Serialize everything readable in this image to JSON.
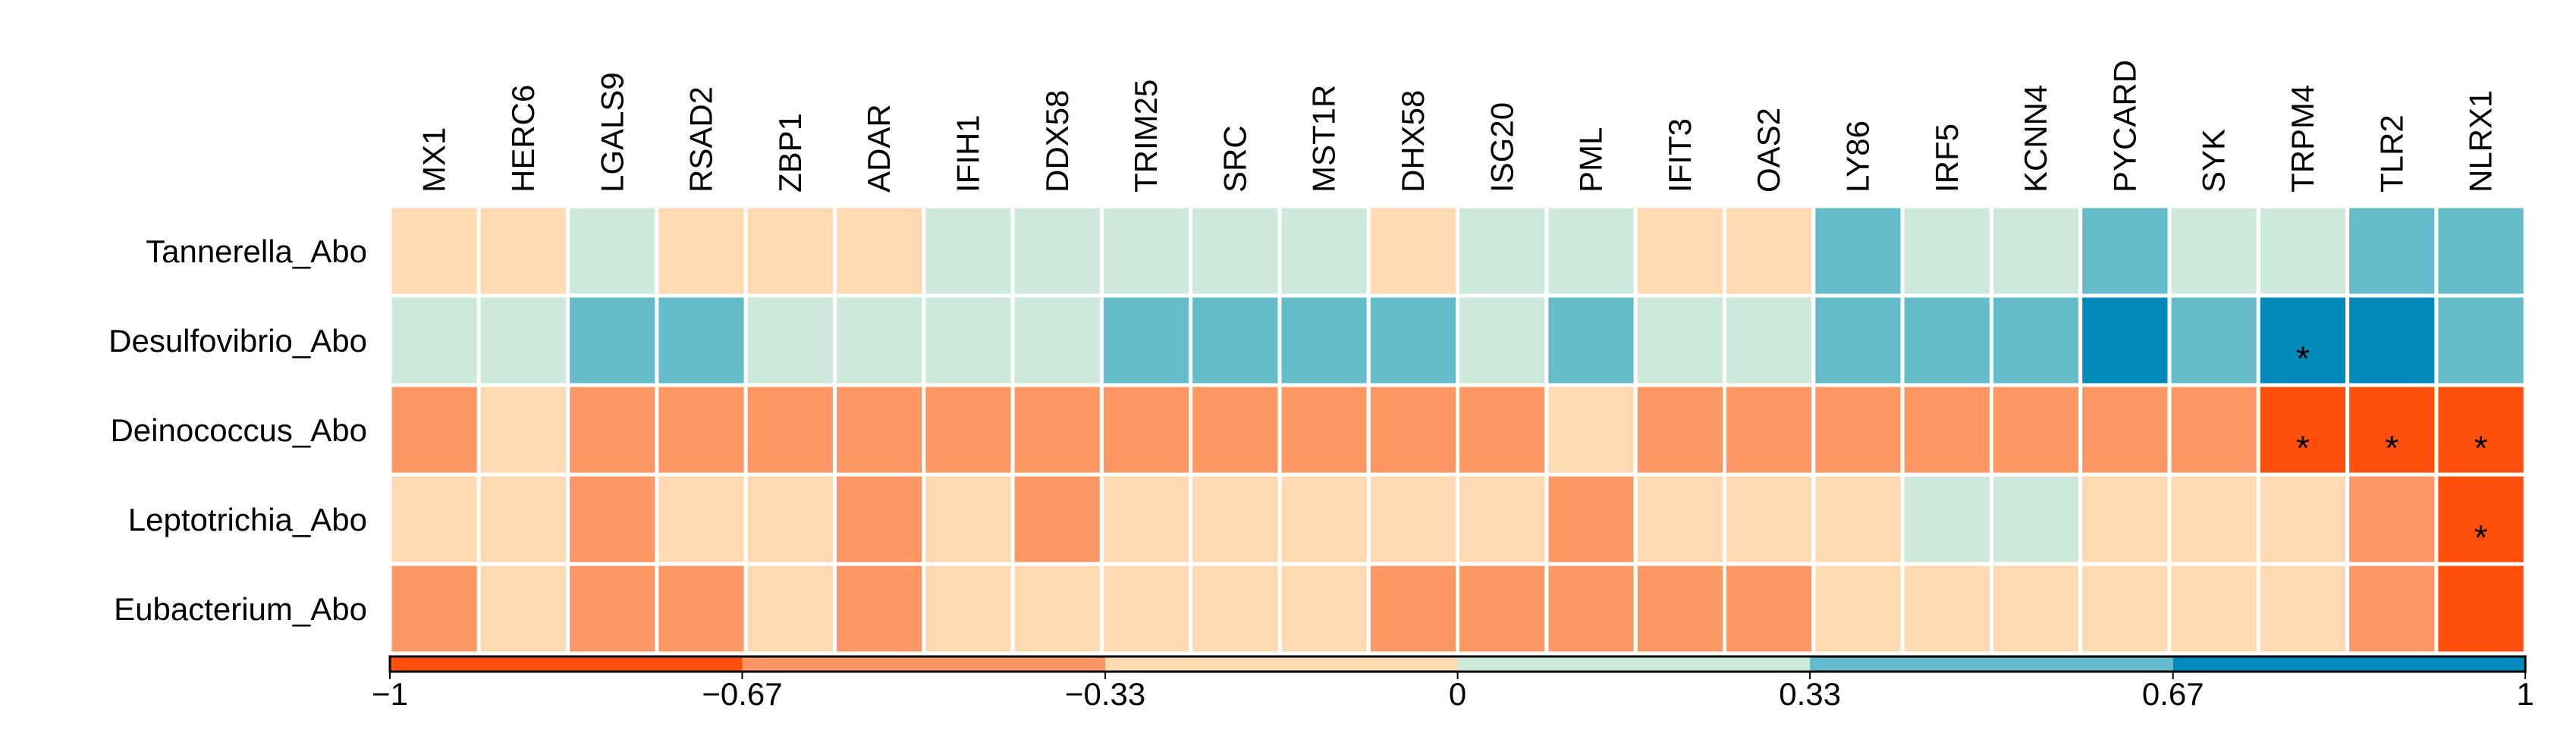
{
  "chart_data": {
    "type": "heatmap",
    "title": "",
    "xlabel": "",
    "ylabel": "",
    "columns": [
      "MX1",
      "HERC6",
      "LGALS9",
      "RSAD2",
      "ZBP1",
      "ADAR",
      "IFIH1",
      "DDX58",
      "TRIM25",
      "SRC",
      "MST1R",
      "DHX58",
      "ISG20",
      "PML",
      "IFIT3",
      "OAS2",
      "LY86",
      "IRF5",
      "KCNN4",
      "PYCARD",
      "SYK",
      "TRPM4",
      "TLR2",
      "NLRX1"
    ],
    "rows": [
      "Tannerella_Abo",
      "Desulfovibrio_Abo",
      "Deinococcus_Abo",
      "Leptotrichia_Abo",
      "Eubacterium_Abo"
    ],
    "values": [
      [
        -0.2,
        -0.2,
        0.2,
        -0.2,
        -0.2,
        -0.2,
        0.2,
        0.2,
        0.2,
        0.2,
        0.2,
        -0.2,
        0.2,
        0.2,
        -0.2,
        -0.2,
        0.5,
        0.2,
        0.2,
        0.5,
        0.2,
        0.2,
        0.5,
        0.5
      ],
      [
        0.2,
        0.2,
        0.5,
        0.5,
        0.2,
        0.2,
        0.2,
        0.2,
        0.5,
        0.5,
        0.5,
        0.5,
        0.2,
        0.5,
        0.2,
        0.2,
        0.5,
        0.5,
        0.5,
        0.85,
        0.5,
        0.85,
        0.85,
        0.5
      ],
      [
        -0.5,
        -0.2,
        -0.5,
        -0.5,
        -0.5,
        -0.5,
        -0.5,
        -0.5,
        -0.5,
        -0.5,
        -0.5,
        -0.5,
        -0.5,
        -0.2,
        -0.5,
        -0.5,
        -0.5,
        -0.5,
        -0.5,
        -0.5,
        -0.5,
        -0.85,
        -0.85,
        -0.85
      ],
      [
        -0.2,
        -0.2,
        -0.5,
        -0.2,
        -0.2,
        -0.5,
        -0.2,
        -0.5,
        -0.2,
        -0.2,
        -0.2,
        -0.2,
        -0.2,
        -0.5,
        -0.2,
        -0.2,
        -0.2,
        0.2,
        0.2,
        -0.2,
        -0.2,
        -0.2,
        -0.5,
        -0.85
      ],
      [
        -0.5,
        -0.2,
        -0.5,
        -0.5,
        -0.2,
        -0.5,
        -0.2,
        -0.2,
        -0.2,
        -0.2,
        -0.2,
        -0.5,
        -0.5,
        -0.5,
        -0.5,
        -0.5,
        -0.2,
        -0.2,
        -0.2,
        -0.2,
        -0.2,
        -0.2,
        -0.5,
        -0.85
      ]
    ],
    "significant": [
      {
        "row": 1,
        "col": 21
      },
      {
        "row": 2,
        "col": 21
      },
      {
        "row": 2,
        "col": 22
      },
      {
        "row": 2,
        "col": 23
      },
      {
        "row": 3,
        "col": 23
      }
    ],
    "significance_marker": "*",
    "color_scale": {
      "range": [
        -1,
        1
      ],
      "ticks": [
        -1,
        -0.67,
        -0.33,
        0,
        0.33,
        0.67,
        1
      ],
      "tick_labels": [
        "−1",
        "−0.67",
        "−0.33",
        "0",
        "0.33",
        "0.67",
        "1"
      ],
      "bins": [
        {
          "min": -1.0,
          "max": -0.67,
          "color": "#fe4f0c"
        },
        {
          "min": -0.67,
          "max": -0.33,
          "color": "#fd9864"
        },
        {
          "min": -0.33,
          "max": 0.0,
          "color": "#fed9b2"
        },
        {
          "min": 0.0,
          "max": 0.33,
          "color": "#cde9dc"
        },
        {
          "min": 0.33,
          "max": 0.67,
          "color": "#64bccb"
        },
        {
          "min": 0.67,
          "max": 1.0,
          "color": "#0089bb"
        }
      ]
    },
    "grid_line_color": "#ffffff",
    "legend_position": "bottom"
  }
}
